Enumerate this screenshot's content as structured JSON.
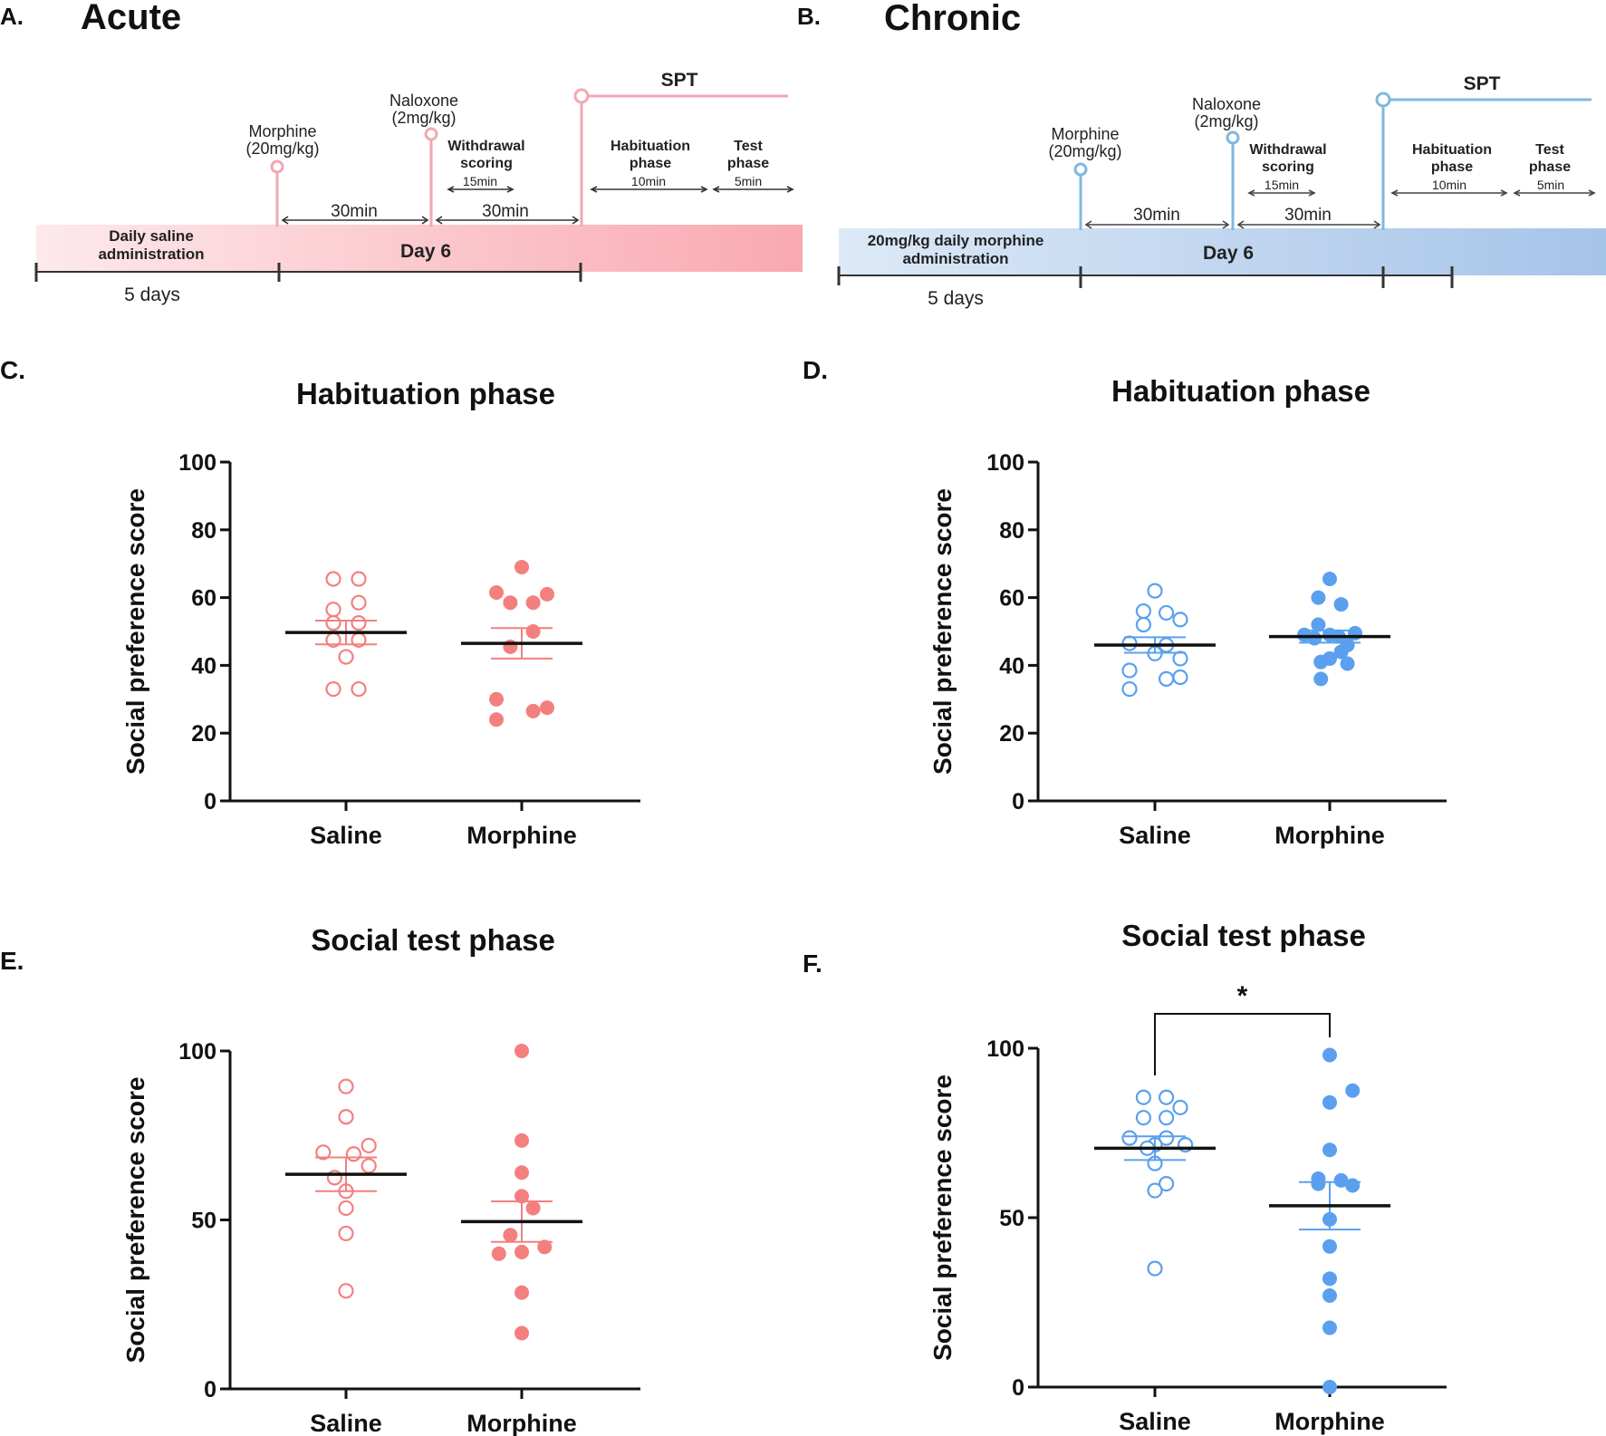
{
  "panel_letters": {
    "a": "A.",
    "b": "B.",
    "c": "C.",
    "d": "D.",
    "e": "E.",
    "f": "F."
  },
  "timeline_a": {
    "title": "Acute",
    "color": "#f2a7b2",
    "bar_gradient": [
      "#fde9ec",
      "#f9a9b0"
    ],
    "baseline_label": "Daily saline\nadministration",
    "day_label": "Day 6",
    "days_label": "5 days",
    "injection1": "Morphine\n(20mg/kg)",
    "injection2": "Naloxone\n(2mg/kg)",
    "wait1": "30min",
    "wait2": "30min",
    "withdrawal": "Withdrawal\nscoring",
    "withdrawal_duration": "15min",
    "spt": "SPT",
    "habituation": "Habituation\nphase",
    "habituation_duration": "10min",
    "test": "Test\nphase",
    "test_duration": "5min"
  },
  "timeline_b": {
    "title": "Chronic",
    "color": "#7fb8dd",
    "bar_gradient": [
      "#dce9f7",
      "#a6c4e8"
    ],
    "baseline_label": "20mg/kg daily morphine\nadministration",
    "day_label": "Day 6",
    "days_label": "5 days",
    "injection1": "Morphine\n(20mg/kg)",
    "injection2": "Naloxone\n(2mg/kg)",
    "wait1": "30min",
    "wait2": "30min",
    "withdrawal": "Withdrawal\nscoring",
    "withdrawal_duration": "15min",
    "spt": "SPT",
    "habituation": "Habituation\nphase",
    "habituation_duration": "10min",
    "test": "Test\nphase",
    "test_duration": "5min"
  },
  "chart_data": [
    {
      "panel": "C",
      "type": "scatter",
      "title": "Habituation phase",
      "xlabel": "",
      "ylabel": "Social preference score",
      "ylim": [
        0,
        100
      ],
      "yticks": [
        0,
        20,
        40,
        60,
        80,
        100
      ],
      "categories": [
        "Saline",
        "Morphine"
      ],
      "color": "#f47f7f",
      "series": [
        {
          "name": "Saline",
          "filled": false,
          "mean": 49.7,
          "sem": 3.5,
          "values": [
            65.5,
            65.5,
            58.5,
            56.5,
            52.5,
            52.5,
            47.5,
            47.5,
            42.5,
            33,
            33
          ],
          "jitter": [
            -0.5,
            0.5,
            0.5,
            -0.5,
            -0.5,
            0.5,
            -0.5,
            0.5,
            0,
            -0.5,
            0.5
          ]
        },
        {
          "name": "Morphine",
          "filled": true,
          "mean": 46.5,
          "sem": 4.5,
          "values": [
            69,
            61.5,
            61,
            58.5,
            58.5,
            50,
            45.5,
            30,
            27.5,
            26.5,
            24
          ],
          "jitter": [
            0,
            -1,
            1,
            -0.45,
            0.45,
            0.45,
            -0.45,
            -1,
            1,
            0.45,
            -1
          ]
        }
      ]
    },
    {
      "panel": "D",
      "type": "scatter",
      "title": "Habituation phase",
      "xlabel": "",
      "ylabel": "Social preference score",
      "ylim": [
        0,
        100
      ],
      "yticks": [
        0,
        20,
        40,
        60,
        80,
        100
      ],
      "categories": [
        "Saline",
        "Morphine"
      ],
      "color": "#5aa0ee",
      "series": [
        {
          "name": "Saline",
          "filled": false,
          "mean": 46,
          "sem": 2.3,
          "values": [
            62,
            56,
            55.5,
            53.5,
            52,
            46.5,
            46,
            43.5,
            42,
            38.5,
            36.5,
            36,
            33
          ],
          "jitter": [
            0,
            -0.45,
            0.45,
            1,
            -0.45,
            -1,
            0.45,
            0,
            1,
            -1,
            1,
            0.45,
            -1
          ]
        },
        {
          "name": "Morphine",
          "filled": true,
          "mean": 48.5,
          "sem": 1.8,
          "values": [
            65.5,
            60,
            58,
            52,
            49.5,
            49,
            49,
            48.5,
            48,
            46,
            44,
            42,
            41,
            40.5,
            36
          ],
          "jitter": [
            0,
            -0.45,
            0.45,
            -0.45,
            1,
            -1,
            0,
            0.35,
            -0.6,
            0.7,
            0.45,
            0,
            -0.35,
            0.7,
            -0.35
          ]
        }
      ]
    },
    {
      "panel": "E",
      "type": "scatter",
      "title": "Social test phase",
      "xlabel": "",
      "ylabel": "Social preference score",
      "ylim": [
        0,
        100
      ],
      "yticks": [
        0,
        50,
        100
      ],
      "categories": [
        "Saline",
        "Morphine"
      ],
      "color": "#f47f7f",
      "series": [
        {
          "name": "Saline",
          "filled": false,
          "mean": 63.5,
          "sem": 5,
          "values": [
            89.5,
            80.5,
            72,
            70,
            69.5,
            66,
            62.5,
            58.5,
            53.5,
            46,
            29
          ],
          "jitter": [
            0,
            0,
            0.9,
            -0.9,
            0.3,
            0.9,
            -0.45,
            0,
            0,
            0,
            0
          ]
        },
        {
          "name": "Morphine",
          "filled": true,
          "mean": 49.5,
          "sem": 6,
          "values": [
            100,
            73.5,
            64,
            57,
            53.5,
            45.5,
            42,
            40.5,
            40,
            28.5,
            16.5
          ],
          "jitter": [
            0,
            0,
            0,
            0,
            0.45,
            -0.45,
            0.9,
            0,
            -0.9,
            0,
            0
          ]
        }
      ]
    },
    {
      "panel": "F",
      "type": "scatter",
      "title": "Social test phase",
      "xlabel": "",
      "ylabel": "Social preference score",
      "ylim": [
        0,
        100
      ],
      "yticks": [
        0,
        50,
        100
      ],
      "categories": [
        "Saline",
        "Morphine"
      ],
      "color": "#5aa0ee",
      "significance": {
        "label": "*",
        "between": [
          "Saline",
          "Morphine"
        ]
      },
      "series": [
        {
          "name": "Saline",
          "filled": false,
          "mean": 70.5,
          "sem": 3.5,
          "values": [
            85.5,
            85.5,
            82.5,
            79.5,
            79.5,
            73.5,
            73.5,
            71.5,
            71.5,
            70.5,
            66,
            60,
            58,
            35
          ],
          "jitter": [
            -0.45,
            0.45,
            1,
            -0.45,
            0.45,
            0.45,
            -1,
            1.2,
            0,
            -0.3,
            0,
            0.45,
            0,
            0
          ]
        },
        {
          "name": "Morphine",
          "filled": true,
          "mean": 53.5,
          "sem": 7,
          "values": [
            98,
            87.5,
            84,
            70,
            61.5,
            61,
            60,
            59.5,
            49.5,
            41.5,
            32,
            27,
            17.5,
            0
          ],
          "jitter": [
            0,
            0.9,
            0,
            0,
            -0.45,
            0.45,
            -0.45,
            0.9,
            0,
            0,
            0,
            0,
            0,
            0
          ]
        }
      ]
    }
  ]
}
